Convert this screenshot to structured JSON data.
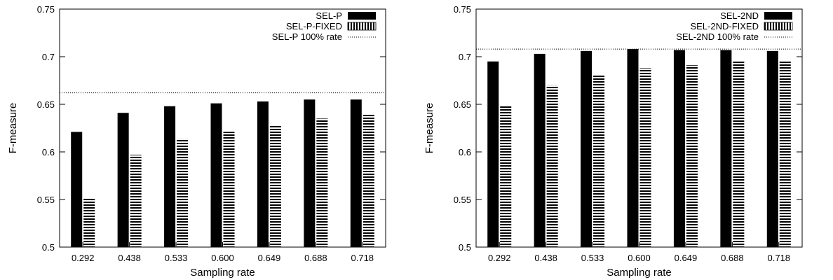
{
  "chart_data": [
    {
      "type": "bar",
      "title": "",
      "xlabel": "Sampling rate",
      "ylabel": "F-measure",
      "categories": [
        "0.292",
        "0.438",
        "0.533",
        "0.600",
        "0.649",
        "0.688",
        "0.718"
      ],
      "ylim": [
        0.5,
        0.75
      ],
      "yticks": [
        "0.5",
        "0.55",
        "0.6",
        "0.65",
        "0.7",
        "0.75"
      ],
      "legend_position": "top-right",
      "series": [
        {
          "name": "SEL-P",
          "style": "solid",
          "color": "#000000",
          "values": [
            0.621,
            0.641,
            0.648,
            0.651,
            0.653,
            0.655,
            0.655
          ]
        },
        {
          "name": "SEL-P-FIXED",
          "style": "hatched",
          "color": "#000000",
          "values": [
            0.551,
            0.597,
            0.614,
            0.621,
            0.628,
            0.635,
            0.639
          ]
        }
      ],
      "reference_line": {
        "name": "SEL-P 100% rate",
        "value": 0.662,
        "style": "dotted"
      }
    },
    {
      "type": "bar",
      "title": "",
      "xlabel": "Sampling rate",
      "ylabel": "F-measure",
      "categories": [
        "0.292",
        "0.438",
        "0.533",
        "0.600",
        "0.649",
        "0.688",
        "0.718"
      ],
      "ylim": [
        0.5,
        0.75
      ],
      "yticks": [
        "0.5",
        "0.55",
        "0.6",
        "0.65",
        "0.7",
        "0.75"
      ],
      "legend_position": "top-right",
      "series": [
        {
          "name": "SEL-2ND",
          "style": "solid",
          "color": "#000000",
          "values": [
            0.695,
            0.703,
            0.706,
            0.708,
            0.707,
            0.707,
            0.706
          ]
        },
        {
          "name": "SEL-2ND-FIXED",
          "style": "hatched",
          "color": "#000000",
          "values": [
            0.649,
            0.67,
            0.681,
            0.688,
            0.691,
            0.695,
            0.695
          ]
        }
      ],
      "reference_line": {
        "name": "SEL-2ND 100% rate",
        "value": 0.708,
        "style": "dotted"
      }
    }
  ]
}
